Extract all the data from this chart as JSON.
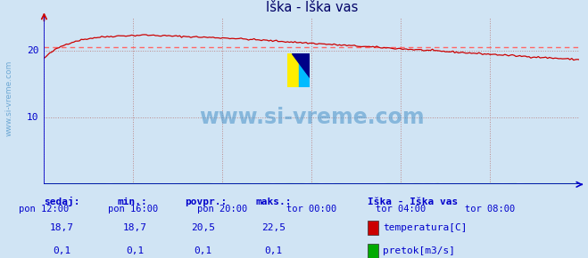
{
  "title": "Iška - Iška vas",
  "bg_color": "#d0e4f4",
  "plot_bg_color": "#d0e4f4",
  "x_tick_labels": [
    "pon 12:00",
    "pon 16:00",
    "pon 20:00",
    "tor 00:00",
    "tor 04:00",
    "tor 08:00"
  ],
  "x_tick_positions": [
    0.0,
    0.1667,
    0.3333,
    0.5,
    0.6667,
    0.8333
  ],
  "y_ticks": [
    0,
    10,
    20
  ],
  "y_lim": [
    0,
    25
  ],
  "avg_line_value": 20.5,
  "temp_color": "#cc0000",
  "flow_color": "#00aa00",
  "avg_line_color": "#ff6666",
  "grid_color": "#bb8888",
  "axis_color": "#0000cc",
  "text_color": "#0000cc",
  "watermark_color": "#5599cc",
  "title_color": "#000066",
  "legend_title": "Iška - Iška vas",
  "legend_items": [
    {
      "label": "temperatura[C]",
      "color": "#cc0000"
    },
    {
      "label": "pretok[m3/s]",
      "color": "#00aa00"
    }
  ],
  "stats_headers": [
    "sedaj:",
    "min.:",
    "povpr.:",
    "maks.:"
  ],
  "stats_temp": [
    "18,7",
    "18,7",
    "20,5",
    "22,5"
  ],
  "stats_flow": [
    "0,1",
    "0,1",
    "0,1",
    "0,1"
  ],
  "watermark_text": "www.si-vreme.com",
  "sidebar_text": "www.si-vreme.com",
  "n_points": 289,
  "flow_value": 0.1
}
